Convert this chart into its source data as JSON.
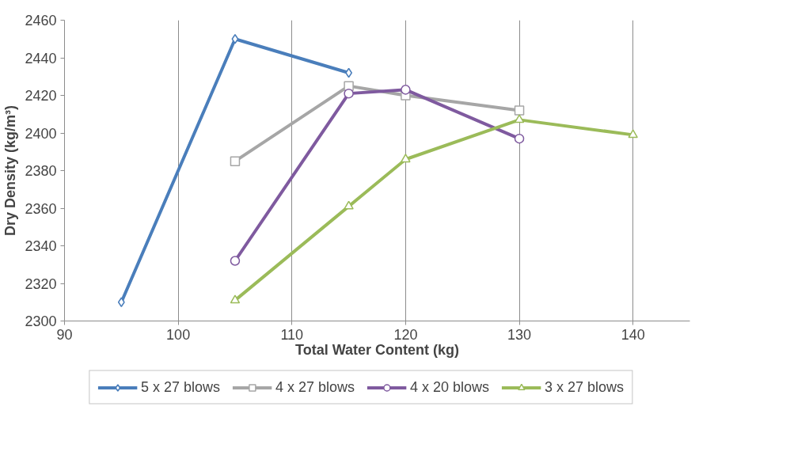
{
  "chart_data": {
    "type": "line",
    "xlabel": "Total Water Content (kg)",
    "ylabel": "Dry Density (kg/m³)",
    "xlim": [
      90,
      145
    ],
    "xticks": [
      90,
      100,
      110,
      120,
      130,
      140
    ],
    "ylim": [
      2300,
      2460
    ],
    "yticks": [
      2300,
      2320,
      2340,
      2360,
      2380,
      2400,
      2420,
      2440,
      2460
    ],
    "grid": "x",
    "legend": "bottom",
    "line_style": "solid",
    "series": [
      {
        "name": "5 x 27 blows",
        "color": "#4a7ebb",
        "marker": "diamond",
        "x": [
          95,
          105,
          115
        ],
        "values": [
          2310,
          2450,
          2432
        ]
      },
      {
        "name": "4 x 27 blows",
        "color": "#a6a6a6",
        "marker": "square",
        "x": [
          105,
          115,
          120,
          130
        ],
        "values": [
          2385,
          2425,
          2420,
          2412
        ]
      },
      {
        "name": "4 x 20 blows",
        "color": "#7f5a9f",
        "marker": "circle",
        "x": [
          105,
          115,
          120,
          130
        ],
        "values": [
          2332,
          2421,
          2423,
          2397
        ]
      },
      {
        "name": "3 x 27 blows",
        "color": "#9bbb59",
        "marker": "triangle",
        "x": [
          105,
          115,
          120,
          130,
          140
        ],
        "values": [
          2311,
          2361,
          2386,
          2407,
          2399
        ]
      }
    ]
  }
}
